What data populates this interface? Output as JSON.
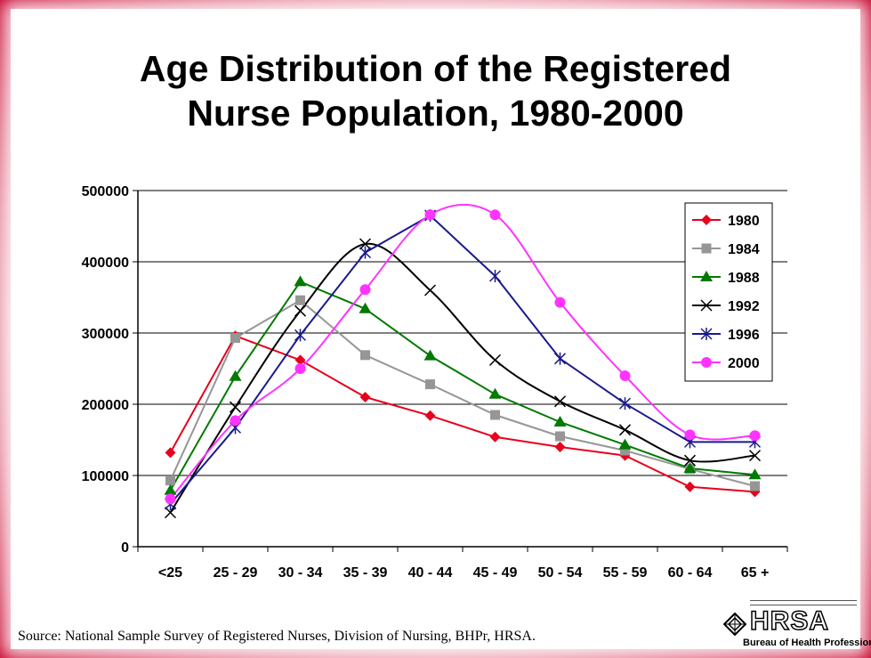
{
  "title": [
    "Age Distribution of the Registered",
    "Nurse Population, 1980-2000"
  ],
  "source": "Source: National Sample Survey of Registered Nurses, Division of Nursing, BHPr, HRSA.",
  "logo": {
    "name": "HRSA",
    "subtitle": "Bureau of Health Professions"
  },
  "colors": {
    "1980": "#e8001c",
    "1984": "#969696",
    "1988": "#007a00",
    "1992": "#000000",
    "1996": "#1a1a8c",
    "2000": "#ff33ff"
  },
  "chart_data": {
    "type": "line",
    "title": "Age Distribution of the Registered Nurse Population, 1980-2000",
    "categories": [
      "<25",
      "25 - 29",
      "30 - 34",
      "35 - 39",
      "40 - 44",
      "45 - 49",
      "50 - 54",
      "55 - 59",
      "60 - 64",
      "65 +"
    ],
    "ylim": [
      0,
      500000
    ],
    "yticks": [
      "0",
      "100000",
      "200000",
      "300000",
      "400000",
      "500000"
    ],
    "grid": true,
    "legend": "top-right, inside plot",
    "series": [
      {
        "name": "1980",
        "marker": "diamond",
        "smooth": false,
        "values": [
          132000,
          296000,
          262000,
          210000,
          184000,
          154000,
          140000,
          128000,
          84000,
          77000
        ]
      },
      {
        "name": "1984",
        "marker": "square",
        "smooth": false,
        "values": [
          93000,
          293000,
          346000,
          269000,
          228000,
          185000,
          155000,
          135000,
          109000,
          85000
        ]
      },
      {
        "name": "1988",
        "marker": "triangle",
        "smooth": false,
        "values": [
          79000,
          239000,
          372000,
          334000,
          268000,
          214000,
          175000,
          143000,
          110000,
          101000
        ]
      },
      {
        "name": "1992",
        "marker": "x",
        "smooth": true,
        "values": [
          48000,
          196000,
          331000,
          425000,
          360000,
          262000,
          204000,
          164000,
          121000,
          128000
        ]
      },
      {
        "name": "1996",
        "marker": "star",
        "smooth": false,
        "values": [
          60000,
          167000,
          297000,
          413000,
          465000,
          380000,
          264000,
          201000,
          147000,
          147000
        ]
      },
      {
        "name": "2000",
        "marker": "circle",
        "smooth": true,
        "values": [
          67000,
          177000,
          250000,
          361000,
          466000,
          466000,
          343000,
          240000,
          157000,
          156000
        ]
      }
    ]
  }
}
